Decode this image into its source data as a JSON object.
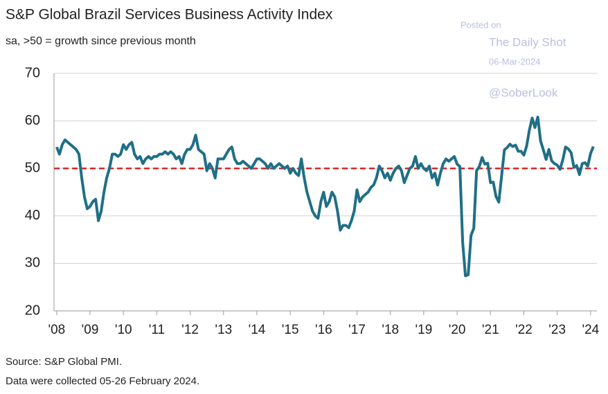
{
  "chart_data": {
    "type": "line",
    "title": "S&P Global Brazil Services Business Activity Index",
    "subtitle": "sa, >50 = growth since previous month",
    "watermark": [
      "Posted on",
      "The Daily Shot",
      "06-Mar-2024",
      "@SoberLook"
    ],
    "source": "Source: S&P Global PMI.",
    "note": "Data were collected 05-26 February 2024.",
    "color": "#1f6f86",
    "reference_line": {
      "value": 50,
      "color": "#d62828"
    },
    "grid": true,
    "xlim": [
      2007.92,
      2024.19
    ],
    "ylim": [
      20,
      70
    ],
    "yticks": [
      20,
      30,
      40,
      50,
      60,
      70
    ],
    "xticks": [
      {
        "value": 2008,
        "label": "'08"
      },
      {
        "value": 2009,
        "label": "'09"
      },
      {
        "value": 2010,
        "label": "'10"
      },
      {
        "value": 2011,
        "label": "'11"
      },
      {
        "value": 2012,
        "label": "'12"
      },
      {
        "value": 2013,
        "label": "'13"
      },
      {
        "value": 2014,
        "label": "'14"
      },
      {
        "value": 2015,
        "label": "'15"
      },
      {
        "value": 2016,
        "label": "'16"
      },
      {
        "value": 2017,
        "label": "'17"
      },
      {
        "value": 2018,
        "label": "'18"
      },
      {
        "value": 2019,
        "label": "'19"
      },
      {
        "value": 2020,
        "label": "'20"
      },
      {
        "value": 2021,
        "label": "'21"
      },
      {
        "value": 2022,
        "label": "'22"
      },
      {
        "value": 2023,
        "label": "'23"
      },
      {
        "value": 2024,
        "label": "'24"
      }
    ],
    "x": [
      2008,
      2008.083,
      2008.167,
      2008.25,
      2008.333,
      2008.417,
      2008.5,
      2008.583,
      2008.667,
      2008.75,
      2008.833,
      2008.917,
      2009,
      2009.083,
      2009.167,
      2009.25,
      2009.333,
      2009.417,
      2009.5,
      2009.583,
      2009.667,
      2009.75,
      2009.833,
      2009.917,
      2010,
      2010.083,
      2010.167,
      2010.25,
      2010.333,
      2010.417,
      2010.5,
      2010.583,
      2010.667,
      2010.75,
      2010.833,
      2010.917,
      2011,
      2011.083,
      2011.167,
      2011.25,
      2011.333,
      2011.417,
      2011.5,
      2011.583,
      2011.667,
      2011.75,
      2011.833,
      2011.917,
      2012,
      2012.083,
      2012.167,
      2012.25,
      2012.333,
      2012.417,
      2012.5,
      2012.583,
      2012.667,
      2012.75,
      2012.833,
      2012.917,
      2013,
      2013.083,
      2013.167,
      2013.25,
      2013.333,
      2013.417,
      2013.5,
      2013.583,
      2013.667,
      2013.75,
      2013.833,
      2013.917,
      2014,
      2014.083,
      2014.167,
      2014.25,
      2014.333,
      2014.417,
      2014.5,
      2014.583,
      2014.667,
      2014.75,
      2014.833,
      2014.917,
      2015,
      2015.083,
      2015.167,
      2015.25,
      2015.333,
      2015.417,
      2015.5,
      2015.583,
      2015.667,
      2015.75,
      2015.833,
      2015.917,
      2016,
      2016.083,
      2016.167,
      2016.25,
      2016.333,
      2016.417,
      2016.5,
      2016.583,
      2016.667,
      2016.75,
      2016.833,
      2016.917,
      2017,
      2017.083,
      2017.167,
      2017.25,
      2017.333,
      2017.417,
      2017.5,
      2017.583,
      2017.667,
      2017.75,
      2017.833,
      2017.917,
      2018,
      2018.083,
      2018.167,
      2018.25,
      2018.333,
      2018.417,
      2018.5,
      2018.583,
      2018.667,
      2018.75,
      2018.833,
      2018.917,
      2019,
      2019.083,
      2019.167,
      2019.25,
      2019.333,
      2019.417,
      2019.5,
      2019.583,
      2019.667,
      2019.75,
      2019.833,
      2019.917,
      2020,
      2020.083,
      2020.167,
      2020.25,
      2020.333,
      2020.417,
      2020.5,
      2020.583,
      2020.667,
      2020.75,
      2020.833,
      2020.917,
      2021,
      2021.083,
      2021.167,
      2021.25,
      2021.333,
      2021.417,
      2021.5,
      2021.583,
      2021.667,
      2021.75,
      2021.833,
      2021.917,
      2022,
      2022.083,
      2022.167,
      2022.25,
      2022.333,
      2022.417,
      2022.5,
      2022.583,
      2022.667,
      2022.75,
      2022.833,
      2022.917,
      2023,
      2023.083,
      2023.167,
      2023.25,
      2023.333,
      2023.417,
      2023.5,
      2023.583,
      2023.667,
      2023.75,
      2023.833,
      2023.917,
      2024,
      2024.083
    ],
    "values": [
      54.5,
      53,
      55,
      56,
      55.5,
      55,
      54.5,
      54,
      53,
      48,
      44,
      41.5,
      42,
      43,
      43.5,
      39,
      41,
      45,
      48,
      50,
      53,
      53,
      52.5,
      53,
      55,
      54,
      55,
      55.5,
      53,
      52,
      52.5,
      51,
      52,
      52.5,
      52,
      52.5,
      52.5,
      53,
      53,
      53.5,
      53,
      53.5,
      53,
      52,
      52.5,
      51,
      53,
      54,
      54,
      55,
      57,
      54,
      53.5,
      53,
      49.5,
      51,
      50,
      48,
      52,
      52,
      52,
      53,
      54,
      54.5,
      52,
      51,
      51,
      51.5,
      51,
      50.5,
      50,
      51,
      52,
      52,
      51.5,
      51,
      50,
      51,
      50,
      50.5,
      51,
      50.5,
      50,
      50.5,
      49,
      50,
      49,
      48.5,
      52,
      48,
      45,
      43,
      41,
      40,
      39.5,
      43,
      45,
      42,
      43,
      45,
      44,
      41,
      37,
      38,
      38,
      37.5,
      39,
      41,
      45.5,
      43,
      44,
      44.5,
      45,
      46,
      46.5,
      48,
      50.5,
      49.5,
      48,
      49,
      47.5,
      49,
      50,
      50.5,
      49.5,
      47,
      48.5,
      50,
      50.5,
      52.5,
      50,
      51,
      50,
      49.5,
      50.5,
      48,
      49,
      46.5,
      49,
      51,
      52,
      51.5,
      52,
      52.5,
      50.9,
      50.4,
      34.5,
      27.4,
      27.6,
      35.9,
      37.4,
      49.5,
      50.4,
      52.3,
      50.9,
      51.1,
      47,
      47.1,
      44.1,
      42.9,
      48.3,
      53.9,
      54.4,
      55.1,
      54.6,
      54.9,
      53.6,
      53.6,
      52.8,
      54.7,
      58.1,
      60.6,
      58.6,
      60.8,
      55.8,
      53.9,
      51.9,
      54,
      51.6,
      51,
      50.7,
      49.8,
      51.8,
      54.5,
      54.1,
      53.3,
      50.2,
      50.6,
      48.7,
      51,
      51.2,
      50.5,
      53.1,
      54.6
    ]
  }
}
